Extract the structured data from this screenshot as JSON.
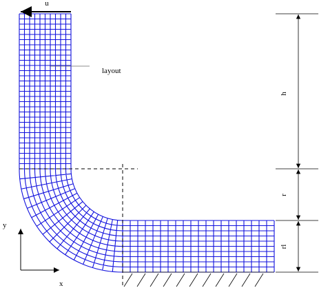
{
  "labels": {
    "u": "u",
    "layout": "layout",
    "h": "h",
    "r": "r",
    "rl": "rl",
    "y": "y",
    "x": "x"
  }
}
